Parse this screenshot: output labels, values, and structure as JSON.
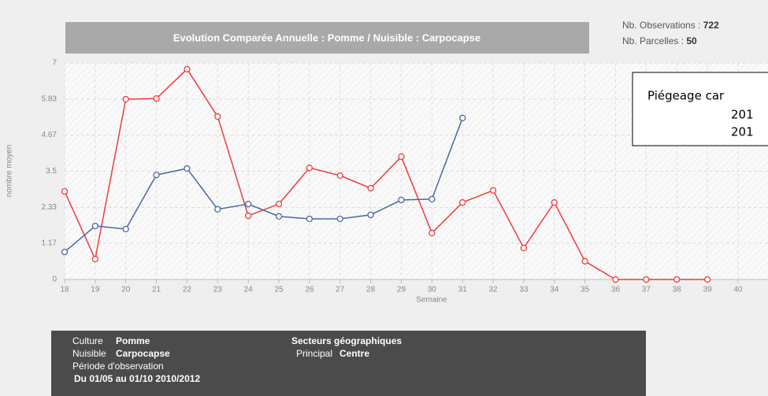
{
  "chart_data": {
    "type": "line",
    "title": "Evolution Comparée Annuelle : Pomme / Nuisible : Carpocapse",
    "ylabel": "nombre moyen",
    "xlabel": "Semaine",
    "x": [
      18,
      19,
      20,
      21,
      22,
      23,
      24,
      25,
      26,
      27,
      28,
      29,
      30,
      31,
      32,
      33,
      34,
      35,
      36,
      37,
      38,
      39
    ],
    "xlim": [
      18,
      40
    ],
    "xticks": [
      18,
      19,
      20,
      21,
      22,
      23,
      24,
      25,
      26,
      27,
      28,
      29,
      30,
      31,
      32,
      33,
      34,
      35,
      36,
      37,
      38,
      39,
      40
    ],
    "ylim": [
      0,
      7
    ],
    "yticks": [
      0,
      1.17,
      2.33,
      3.5,
      4.67,
      5.83,
      7
    ],
    "grid": true,
    "legend": {
      "title": "Piégeage car",
      "position": "upper right"
    },
    "series": [
      {
        "name": "201",
        "color": "#ee3b3b",
        "values": [
          2.85,
          0.66,
          5.83,
          5.85,
          6.8,
          5.27,
          2.06,
          2.44,
          3.61,
          3.36,
          2.95,
          3.97,
          1.5,
          2.49,
          2.88,
          1.02,
          2.49,
          0.59,
          0,
          0,
          0,
          0
        ]
      },
      {
        "name": "201",
        "color": "#4a68a2",
        "values": [
          0.89,
          1.73,
          1.63,
          3.38,
          3.59,
          2.27,
          2.44,
          2.04,
          1.96,
          1.96,
          2.09,
          2.57,
          2.6,
          5.22,
          null,
          null,
          null,
          null,
          null,
          null,
          null,
          null
        ]
      }
    ]
  },
  "stats": [
    {
      "label": "Nb. Observations :",
      "value": 722
    },
    {
      "label": "Nb. Parcelles :",
      "value": 50
    }
  ],
  "info": {
    "culture_label": "Culture",
    "culture": "Pomme",
    "nuisible_label": "Nuisible",
    "nuisible": "Carpocapse",
    "periode_label": "Période d'observation",
    "periode": "Du 01/05 au 01/10 2010/2012",
    "secteurs_label": "Secteurs géographiques",
    "principal_label": "Principal",
    "principal": "Centre"
  }
}
